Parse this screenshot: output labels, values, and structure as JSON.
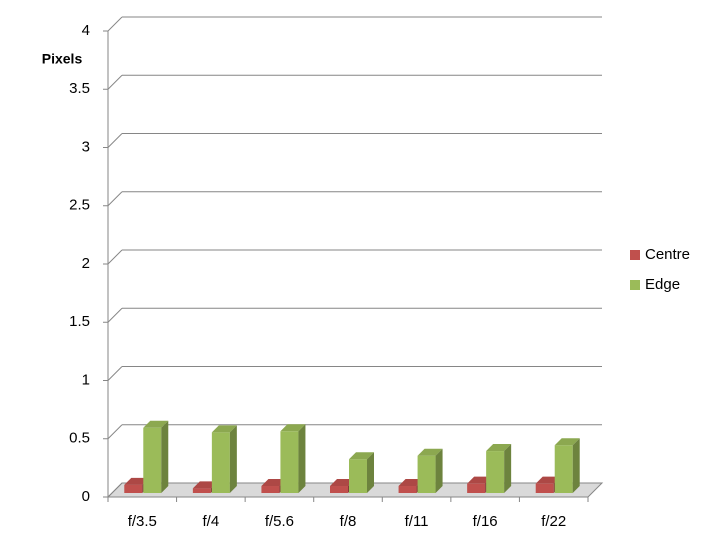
{
  "chart_data": {
    "type": "bar3d",
    "y_label": "Pixels",
    "categories": [
      "f/3.5",
      "f/4",
      "f/5.6",
      "f/8",
      "f/11",
      "f/16",
      "f/22"
    ],
    "series": [
      {
        "name": "Centre",
        "color": "#c0504d",
        "values": [
          0.07,
          0.04,
          0.06,
          0.06,
          0.06,
          0.08,
          0.08
        ]
      },
      {
        "name": "Edge",
        "color": "#9bbb59",
        "values": [
          0.56,
          0.52,
          0.53,
          0.29,
          0.32,
          0.36,
          0.41
        ]
      }
    ],
    "ylim": [
      0,
      4
    ],
    "yticks": [
      0,
      0.5,
      1,
      1.5,
      2,
      2.5,
      3,
      3.5,
      4
    ],
    "grid": true,
    "legend": "right"
  }
}
